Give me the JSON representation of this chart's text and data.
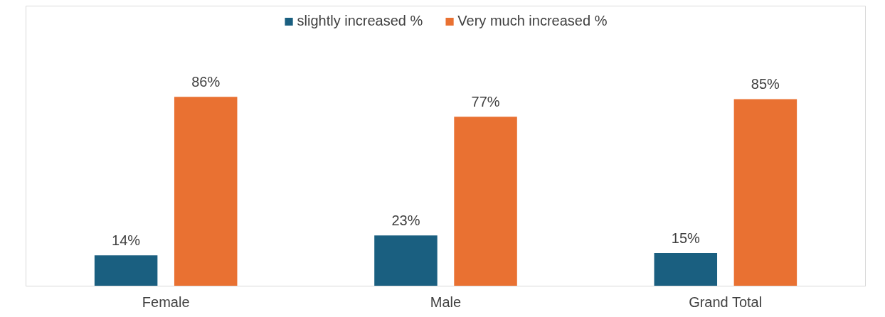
{
  "chart_data": {
    "type": "bar",
    "categories": [
      "Female",
      "Male",
      "Grand Total"
    ],
    "series": [
      {
        "name": "slightly increased %",
        "color": "#1a5f80",
        "values": [
          14,
          23,
          15
        ],
        "value_labels": [
          "14%",
          "23%",
          "15%"
        ]
      },
      {
        "name": "Very much increased %",
        "color": "#e97132",
        "values": [
          86,
          77,
          85
        ],
        "value_labels": [
          "86%",
          "77%",
          "85%"
        ]
      }
    ],
    "legend": "top"
  }
}
